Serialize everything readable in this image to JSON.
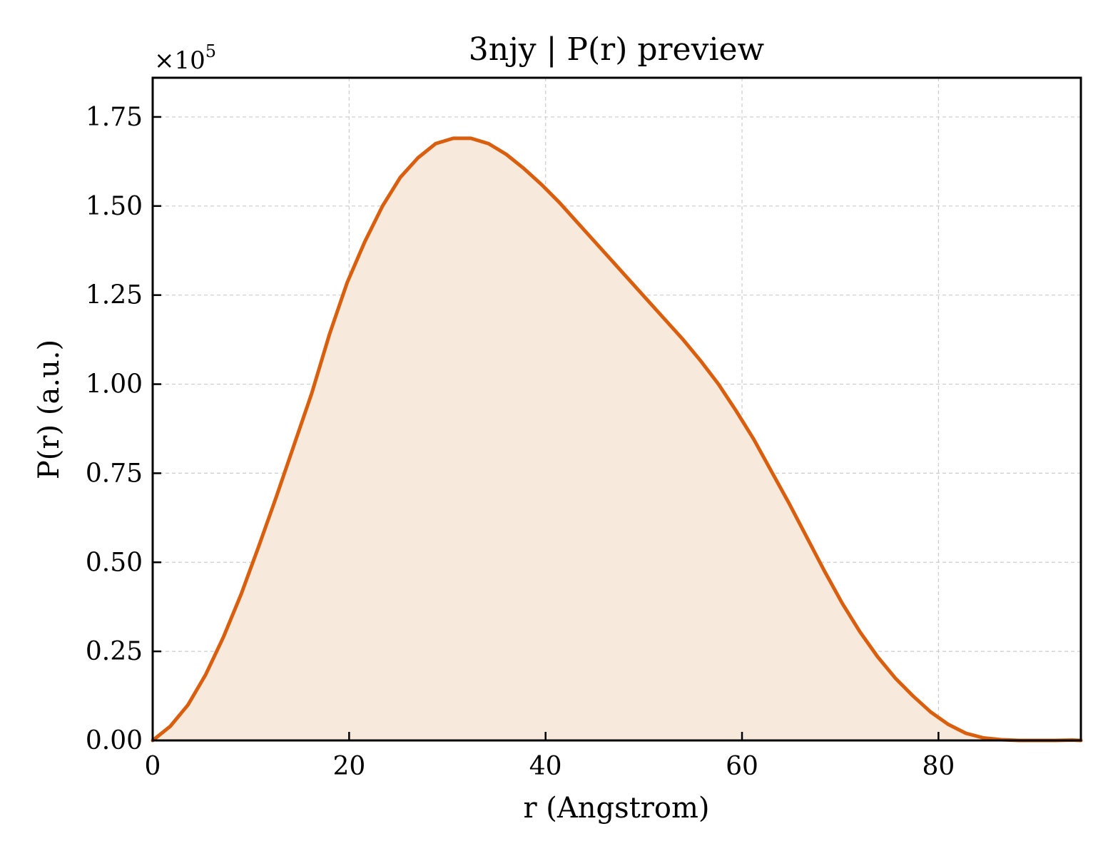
{
  "chart_data": {
    "type": "area",
    "title": "3njy | P(r) preview",
    "xlabel": "r (Angstrom)",
    "ylabel": "P(r) (a.u.)",
    "y_offset_label": {
      "base": "×10",
      "exponent": "5"
    },
    "xlim": [
      0,
      94.5
    ],
    "ylim": [
      0,
      1.86
    ],
    "y_scale_multiplier": 100000,
    "x_ticks": [
      0,
      20,
      40,
      60,
      80
    ],
    "x_tick_labels": [
      "0",
      "20",
      "40",
      "60",
      "80"
    ],
    "y_ticks": [
      0,
      0.25,
      0.5,
      0.75,
      1.0,
      1.25,
      1.5,
      1.75
    ],
    "y_tick_labels": [
      "0.00",
      "0.25",
      "0.50",
      "0.75",
      "1.00",
      "1.25",
      "1.50",
      "1.75"
    ],
    "grid": true,
    "series": [
      {
        "color": "#d95f0e",
        "fill_color": "#f8e9dd",
        "x": [
          0,
          1.8,
          3.6,
          5.4,
          7.2,
          9.0,
          10.8,
          12.6,
          14.4,
          16.2,
          18.0,
          19.8,
          21.6,
          23.4,
          25.2,
          27.0,
          28.8,
          30.6,
          32.4,
          34.2,
          36.0,
          37.8,
          39.6,
          41.4,
          43.2,
          45.0,
          46.8,
          48.6,
          50.4,
          52.2,
          54.0,
          55.8,
          57.6,
          59.4,
          61.2,
          63.0,
          64.8,
          66.6,
          68.4,
          70.2,
          72.0,
          73.8,
          75.6,
          77.4,
          79.2,
          81.0,
          82.8,
          84.6,
          86.4,
          88.2,
          90.0,
          91.8,
          93.6,
          94.5
        ],
        "y": [
          0.0,
          0.04,
          0.1,
          0.185,
          0.29,
          0.41,
          0.545,
          0.685,
          0.83,
          0.975,
          1.14,
          1.285,
          1.4,
          1.5,
          1.58,
          1.635,
          1.675,
          1.69,
          1.69,
          1.675,
          1.645,
          1.605,
          1.56,
          1.51,
          1.455,
          1.4,
          1.345,
          1.29,
          1.235,
          1.18,
          1.125,
          1.065,
          1.0,
          0.925,
          0.845,
          0.755,
          0.665,
          0.57,
          0.475,
          0.385,
          0.305,
          0.235,
          0.175,
          0.125,
          0.08,
          0.045,
          0.02,
          0.007,
          0.002,
          0.0,
          0.0,
          0.0,
          0.001,
          0.0
        ]
      }
    ]
  }
}
